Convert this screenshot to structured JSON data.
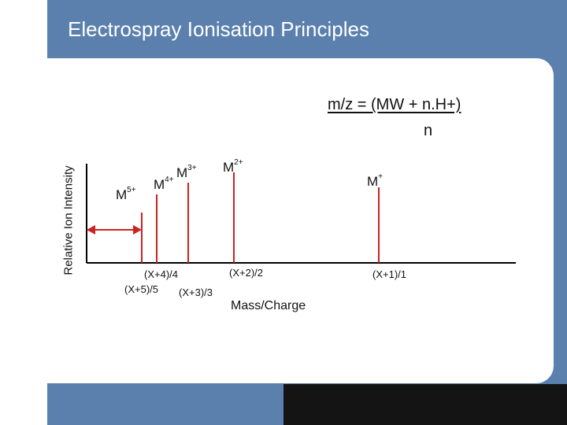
{
  "slide": {
    "title": "Electrospray Ionisation Principles",
    "formula_numerator": "m/z = (MW + n.H+)",
    "formula_denominator": "n"
  },
  "chart_data": {
    "type": "bar",
    "ylabel": "Relative Ion Intensity",
    "xlabel": "Mass/Charge",
    "peaks": [
      {
        "ion": "M",
        "charge": "5+",
        "position_label": "(X+5)/5"
      },
      {
        "ion": "M",
        "charge": "4+",
        "position_label": "(X+4)/4"
      },
      {
        "ion": "M",
        "charge": "3+",
        "position_label": "(X+3)/3"
      },
      {
        "ion": "M",
        "charge": "2+",
        "position_label": "(X+2)/2"
      },
      {
        "ion": "M",
        "charge": "+",
        "position_label": "(X+1)/1"
      }
    ]
  },
  "colors": {
    "header_blue": "#5b80ad",
    "peak_red": "#cc2222",
    "formula_underline": "#5a1a1a"
  }
}
